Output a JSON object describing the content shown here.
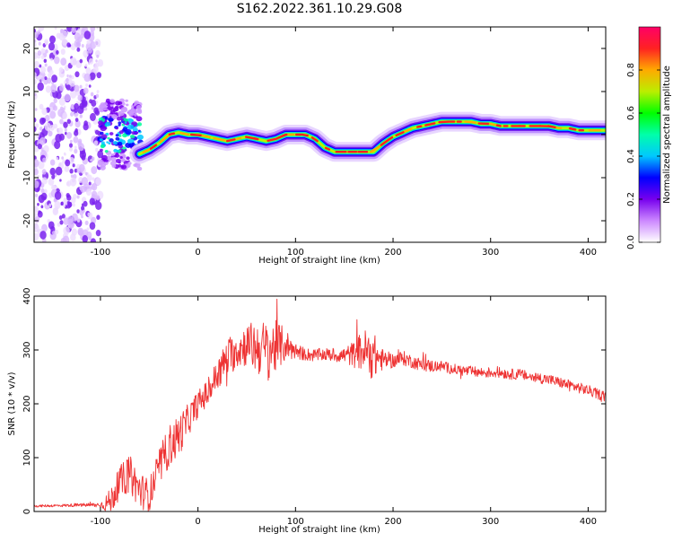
{
  "chart_data": [
    {
      "type": "heatmap",
      "title": "S162.2022.361.10.29.G08",
      "xlabel": "Height of straight line (km)",
      "ylabel": "Frequency (Hz)",
      "xlim": [
        -168,
        418
      ],
      "ylim": [
        -25,
        25
      ],
      "xticks": [
        -100,
        0,
        100,
        200,
        300,
        400
      ],
      "yticks": [
        -20,
        -10,
        0,
        10,
        20
      ],
      "colorbar": {
        "label": "Normalized spectral amplitude",
        "range": [
          0,
          1
        ],
        "ticks": [
          "0.0",
          "0.2",
          "0.4",
          "0.6",
          "0.8"
        ],
        "colors": [
          "#ffffff",
          "#cc88ff",
          "#7700ee",
          "#0000ff",
          "#00c8ff",
          "#00ffaa",
          "#00ff00",
          "#bbee00",
          "#ffaa00",
          "#ff2222",
          "#ff0066"
        ]
      },
      "ridge": {
        "x": [
          -60,
          -50,
          -40,
          -30,
          -20,
          -10,
          0,
          10,
          20,
          30,
          40,
          50,
          60,
          70,
          80,
          90,
          100,
          110,
          120,
          130,
          140,
          150,
          160,
          170,
          180,
          190,
          200,
          210,
          220,
          230,
          240,
          250,
          260,
          270,
          280,
          290,
          300,
          310,
          320,
          330,
          340,
          350,
          360,
          370,
          380,
          390,
          400,
          410,
          418
        ],
        "y": [
          -4.5,
          -3.5,
          -2,
          0,
          0.5,
          0,
          0,
          -0.5,
          -1,
          -1.5,
          -1,
          -0.5,
          -1,
          -1.5,
          -1,
          0,
          0,
          0,
          -1,
          -3,
          -4,
          -4,
          -4,
          -4,
          -4,
          -2,
          -0.5,
          0.5,
          1.5,
          2,
          2.5,
          3,
          3,
          3,
          3,
          2.5,
          2.5,
          2,
          2,
          2,
          2,
          2,
          2,
          1.5,
          1.5,
          1,
          1,
          1,
          1
        ]
      },
      "noise_region": {
        "x_range": [
          -168,
          -100
        ]
      },
      "scattered_region": {
        "x_range": [
          -100,
          -58
        ]
      }
    },
    {
      "type": "line",
      "xlabel": "Height of straight line (km)",
      "ylabel": "SNR (10 * v/v)",
      "xlim": [
        -168,
        418
      ],
      "ylim": [
        0,
        400
      ],
      "xticks": [
        -100,
        0,
        100,
        200,
        300,
        400
      ],
      "yticks": [
        0,
        100,
        200,
        300,
        400
      ],
      "color": "#ee3333",
      "series": [
        {
          "x": [
            -168,
            -120,
            -100,
            -90,
            -80,
            -70,
            -60,
            -50,
            -40,
            -30,
            -20,
            -10,
            0,
            10,
            20,
            30,
            40,
            50,
            60,
            70,
            80,
            90,
            100,
            110,
            120,
            130,
            140,
            150,
            160,
            170,
            180,
            190,
            200,
            210,
            220,
            230,
            240,
            250,
            260,
            270,
            280,
            290,
            300,
            310,
            320,
            330,
            340,
            350,
            360,
            370,
            380,
            390,
            400,
            410,
            418
          ],
          "y": [
            10,
            12,
            12,
            18,
            55,
            70,
            40,
            30,
            80,
            120,
            140,
            170,
            200,
            220,
            255,
            285,
            300,
            310,
            305,
            300,
            305,
            310,
            298,
            292,
            290,
            292,
            290,
            290,
            292,
            300,
            288,
            282,
            280,
            285,
            278,
            272,
            270,
            270,
            265,
            262,
            260,
            258,
            258,
            258,
            255,
            255,
            250,
            248,
            245,
            240,
            235,
            230,
            225,
            218,
            215
          ],
          "noise": [
            2,
            3,
            5,
            25,
            30,
            35,
            35,
            30,
            35,
            40,
            40,
            30,
            25,
            25,
            30,
            35,
            35,
            40,
            50,
            55,
            50,
            30,
            15,
            12,
            12,
            12,
            12,
            15,
            25,
            40,
            45,
            18,
            14,
            14,
            12,
            12,
            12,
            10,
            10,
            10,
            10,
            10,
            10,
            10,
            10,
            10,
            10,
            10,
            10,
            10,
            10,
            10,
            10,
            10,
            10
          ]
        }
      ]
    }
  ]
}
